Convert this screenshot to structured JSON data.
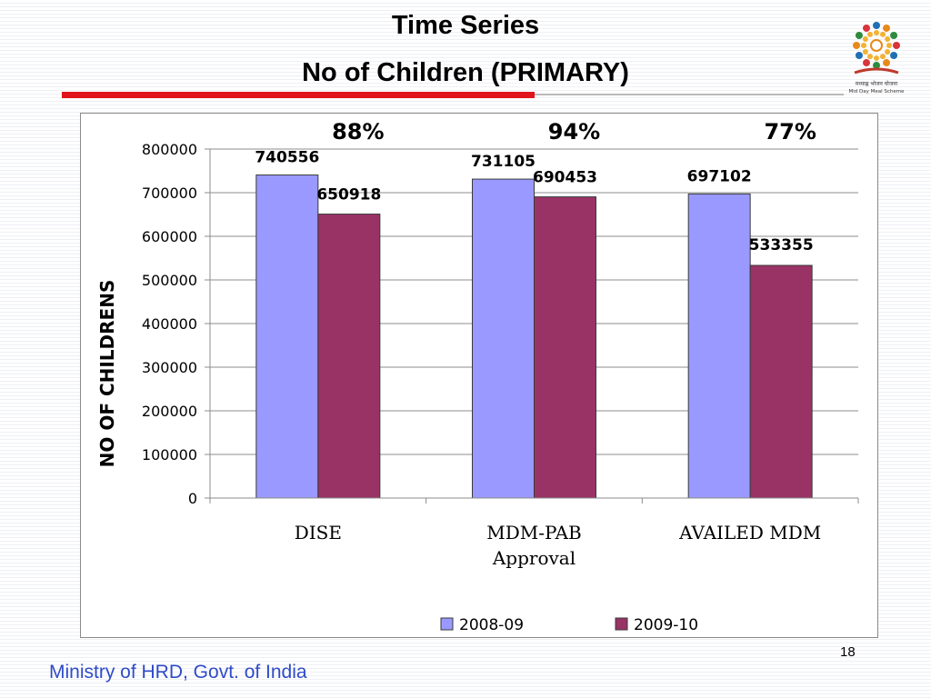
{
  "slide": {
    "title": "Time Series",
    "subtitle": "No of Children (PRIMARY)",
    "footer": "Ministry of HRD, Govt. of India",
    "page_number": "18",
    "logo_text": "मध्याह्न भोजन योजना",
    "logo_subtext": "Mid Day Meal Scheme"
  },
  "chart_data": {
    "type": "bar",
    "categories": [
      [
        "DISE"
      ],
      [
        "MDM-PAB",
        "Approval"
      ],
      [
        "AVAILED MDM"
      ]
    ],
    "series": [
      {
        "name": "2008-09",
        "values": [
          740556,
          731105,
          697102
        ],
        "color": "#9999ff"
      },
      {
        "name": "2009-10",
        "values": [
          650918,
          690453,
          533355
        ],
        "color": "#993366"
      }
    ],
    "percentages": [
      "88%",
      "94%",
      "77%"
    ],
    "ylabel": "NO OF CHILDRENS",
    "ylim": [
      0,
      800000
    ],
    "yticks": [
      0,
      100000,
      200000,
      300000,
      400000,
      500000,
      600000,
      700000,
      800000
    ],
    "grid": true,
    "legend_position": "bottom"
  }
}
